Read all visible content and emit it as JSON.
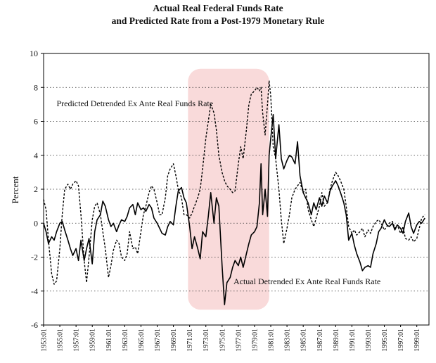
{
  "chart_data": {
    "type": "line",
    "title": "Actual Real Federal Funds Rate",
    "subtitle": "and Predicted Rate from a Post-1979 Monetary Rule",
    "xlabel": "",
    "ylabel": "Percent",
    "ylim": [
      -6,
      10
    ],
    "yticks": [
      -6,
      -4,
      -2,
      0,
      2,
      4,
      6,
      8,
      10
    ],
    "xlim": [
      1953.0,
      2000.5
    ],
    "xtick_labels": [
      "1953:01",
      "1955:01",
      "1957:01",
      "1959:01",
      "1961:01",
      "1963:01",
      "1965:01",
      "1967:01",
      "1969:01",
      "1971:01",
      "1973:01",
      "1975:01",
      "1977:01",
      "1979:01",
      "1981:01",
      "1983:01",
      "1985:01",
      "1987:01",
      "1989:01",
      "1991:01",
      "1993:01",
      "1995:01",
      "1997:01",
      "1999:01"
    ],
    "grid": "horizontal dotted",
    "highlight": {
      "x_start": 1970.8,
      "x_end": 1980.8,
      "y_bottom": -5.1,
      "y_top": 9.1,
      "color": "#f9dada"
    },
    "annotations": [
      {
        "text": "Predicted Detrended Ex Ante Real Funds Rate",
        "x": 1954.6,
        "y": 6.9
      },
      {
        "text": "Actual Detrended Ex Ante Real Funds Rate",
        "x": 1976.4,
        "y": -3.6
      }
    ],
    "series": [
      {
        "name": "Actual Detrended Ex Ante Real Funds Rate",
        "style": "solid",
        "points": [
          [
            1953.0,
            0.0
          ],
          [
            1953.3,
            -0.5
          ],
          [
            1953.6,
            -1.2
          ],
          [
            1954.0,
            -0.8
          ],
          [
            1954.3,
            -1.0
          ],
          [
            1954.6,
            -0.5
          ],
          [
            1955.0,
            0.0
          ],
          [
            1955.3,
            0.1
          ],
          [
            1955.6,
            -0.4
          ],
          [
            1956.0,
            -1.0
          ],
          [
            1956.3,
            -1.5
          ],
          [
            1956.6,
            -1.9
          ],
          [
            1957.0,
            -1.5
          ],
          [
            1957.3,
            -2.2
          ],
          [
            1957.6,
            -1.0
          ],
          [
            1958.0,
            -2.2
          ],
          [
            1958.3,
            -1.5
          ],
          [
            1958.6,
            -0.9
          ],
          [
            1959.0,
            -2.4
          ],
          [
            1959.3,
            -0.5
          ],
          [
            1959.6,
            0.2
          ],
          [
            1960.0,
            0.5
          ],
          [
            1960.3,
            1.3
          ],
          [
            1960.6,
            1.0
          ],
          [
            1961.0,
            0.2
          ],
          [
            1961.3,
            -0.2
          ],
          [
            1961.6,
            0.0
          ],
          [
            1962.0,
            -0.5
          ],
          [
            1962.3,
            -0.1
          ],
          [
            1962.6,
            0.2
          ],
          [
            1963.0,
            0.1
          ],
          [
            1963.3,
            0.4
          ],
          [
            1963.6,
            0.9
          ],
          [
            1964.0,
            1.1
          ],
          [
            1964.3,
            0.5
          ],
          [
            1964.6,
            1.2
          ],
          [
            1965.0,
            0.8
          ],
          [
            1965.3,
            0.9
          ],
          [
            1965.6,
            0.7
          ],
          [
            1966.0,
            1.1
          ],
          [
            1966.3,
            0.9
          ],
          [
            1966.6,
            0.3
          ],
          [
            1967.0,
            0.0
          ],
          [
            1967.3,
            -0.3
          ],
          [
            1967.6,
            -0.6
          ],
          [
            1968.0,
            -0.7
          ],
          [
            1968.3,
            -0.2
          ],
          [
            1968.6,
            0.1
          ],
          [
            1969.0,
            -0.1
          ],
          [
            1969.3,
            1.0
          ],
          [
            1969.6,
            1.9
          ],
          [
            1970.0,
            2.1
          ],
          [
            1970.3,
            1.5
          ],
          [
            1970.6,
            1.2
          ],
          [
            1971.0,
            -0.2
          ],
          [
            1971.3,
            -1.5
          ],
          [
            1971.6,
            -0.8
          ],
          [
            1972.0,
            -1.5
          ],
          [
            1972.3,
            -2.1
          ],
          [
            1972.6,
            -0.5
          ],
          [
            1973.0,
            -0.8
          ],
          [
            1973.3,
            0.4
          ],
          [
            1973.6,
            1.8
          ],
          [
            1974.0,
            0.0
          ],
          [
            1974.3,
            1.5
          ],
          [
            1974.6,
            1.0
          ],
          [
            1975.0,
            -2.5
          ],
          [
            1975.3,
            -4.8
          ],
          [
            1975.6,
            -3.5
          ],
          [
            1976.0,
            -3.2
          ],
          [
            1976.3,
            -2.6
          ],
          [
            1976.6,
            -2.2
          ],
          [
            1977.0,
            -2.5
          ],
          [
            1977.3,
            -2.0
          ],
          [
            1977.6,
            -2.6
          ],
          [
            1978.0,
            -1.8
          ],
          [
            1978.3,
            -1.2
          ],
          [
            1978.6,
            -0.7
          ],
          [
            1979.0,
            -0.5
          ],
          [
            1979.3,
            -0.2
          ],
          [
            1979.6,
            1.2
          ],
          [
            1979.8,
            3.5
          ],
          [
            1980.0,
            0.5
          ],
          [
            1980.3,
            2.0
          ],
          [
            1980.6,
            0.4
          ],
          [
            1980.8,
            4.0
          ],
          [
            1981.0,
            5.0
          ],
          [
            1981.3,
            6.4
          ],
          [
            1981.6,
            3.8
          ],
          [
            1982.0,
            5.8
          ],
          [
            1982.3,
            3.8
          ],
          [
            1982.6,
            3.2
          ],
          [
            1983.0,
            3.7
          ],
          [
            1983.3,
            4.0
          ],
          [
            1983.6,
            3.9
          ],
          [
            1984.0,
            3.5
          ],
          [
            1984.3,
            4.8
          ],
          [
            1984.6,
            2.8
          ],
          [
            1985.0,
            1.8
          ],
          [
            1985.3,
            1.5
          ],
          [
            1985.6,
            1.2
          ],
          [
            1986.0,
            0.5
          ],
          [
            1986.3,
            1.2
          ],
          [
            1986.6,
            0.8
          ],
          [
            1987.0,
            1.5
          ],
          [
            1987.3,
            1.0
          ],
          [
            1987.6,
            1.6
          ],
          [
            1988.0,
            1.2
          ],
          [
            1988.3,
            1.9
          ],
          [
            1988.6,
            2.2
          ],
          [
            1989.0,
            2.5
          ],
          [
            1989.3,
            2.2
          ],
          [
            1989.6,
            1.8
          ],
          [
            1990.0,
            1.2
          ],
          [
            1990.3,
            0.5
          ],
          [
            1990.6,
            -1.0
          ],
          [
            1991.0,
            -0.6
          ],
          [
            1991.3,
            -1.3
          ],
          [
            1991.6,
            -1.8
          ],
          [
            1992.0,
            -2.3
          ],
          [
            1992.3,
            -2.8
          ],
          [
            1992.6,
            -2.6
          ],
          [
            1993.0,
            -2.5
          ],
          [
            1993.3,
            -2.6
          ],
          [
            1993.6,
            -1.8
          ],
          [
            1994.0,
            -1.2
          ],
          [
            1994.3,
            -0.5
          ],
          [
            1994.6,
            -0.3
          ],
          [
            1995.0,
            0.2
          ],
          [
            1995.3,
            -0.1
          ],
          [
            1995.6,
            -0.2
          ],
          [
            1996.0,
            0.0
          ],
          [
            1996.3,
            -0.4
          ],
          [
            1996.6,
            -0.1
          ],
          [
            1997.0,
            -0.3
          ],
          [
            1997.3,
            -0.6
          ],
          [
            1997.6,
            0.1
          ],
          [
            1998.0,
            0.6
          ],
          [
            1998.3,
            -0.2
          ],
          [
            1998.6,
            -0.6
          ],
          [
            1999.0,
            -0.1
          ],
          [
            1999.3,
            0.1
          ],
          [
            1999.6,
            0.0
          ],
          [
            2000.0,
            0.3
          ]
        ]
      },
      {
        "name": "Predicted Detrended Ex Ante Real Funds Rate",
        "style": "dashed",
        "points": [
          [
            1953.0,
            1.4
          ],
          [
            1953.3,
            0.8
          ],
          [
            1953.6,
            -1.0
          ],
          [
            1954.0,
            -3.0
          ],
          [
            1954.3,
            -3.6
          ],
          [
            1954.6,
            -3.4
          ],
          [
            1955.0,
            -1.5
          ],
          [
            1955.3,
            0.5
          ],
          [
            1955.6,
            2.0
          ],
          [
            1956.0,
            2.3
          ],
          [
            1956.3,
            2.0
          ],
          [
            1956.6,
            2.3
          ],
          [
            1957.0,
            2.5
          ],
          [
            1957.3,
            2.2
          ],
          [
            1957.6,
            0.5
          ],
          [
            1958.0,
            -2.2
          ],
          [
            1958.3,
            -3.5
          ],
          [
            1958.6,
            -2.0
          ],
          [
            1959.0,
            0.2
          ],
          [
            1959.3,
            1.0
          ],
          [
            1959.6,
            1.2
          ],
          [
            1960.0,
            0.5
          ],
          [
            1960.3,
            -0.5
          ],
          [
            1960.6,
            -1.5
          ],
          [
            1961.0,
            -3.2
          ],
          [
            1961.3,
            -2.5
          ],
          [
            1961.6,
            -1.6
          ],
          [
            1962.0,
            -1.0
          ],
          [
            1962.3,
            -1.2
          ],
          [
            1962.6,
            -2.0
          ],
          [
            1963.0,
            -2.2
          ],
          [
            1963.3,
            -1.8
          ],
          [
            1963.6,
            -0.5
          ],
          [
            1964.0,
            -1.5
          ],
          [
            1964.3,
            -1.4
          ],
          [
            1964.6,
            -1.8
          ],
          [
            1965.0,
            -0.5
          ],
          [
            1965.3,
            0.5
          ],
          [
            1965.6,
            1.0
          ],
          [
            1966.0,
            1.8
          ],
          [
            1966.3,
            2.2
          ],
          [
            1966.6,
            2.0
          ],
          [
            1967.0,
            1.2
          ],
          [
            1967.3,
            0.5
          ],
          [
            1967.6,
            0.5
          ],
          [
            1968.0,
            1.5
          ],
          [
            1968.3,
            2.8
          ],
          [
            1968.6,
            3.2
          ],
          [
            1969.0,
            3.5
          ],
          [
            1969.3,
            2.8
          ],
          [
            1969.6,
            2.0
          ],
          [
            1970.0,
            1.5
          ],
          [
            1970.3,
            0.5
          ],
          [
            1970.6,
            0.5
          ],
          [
            1971.0,
            0.3
          ],
          [
            1971.3,
            0.6
          ],
          [
            1971.6,
            1.0
          ],
          [
            1972.0,
            1.5
          ],
          [
            1972.3,
            2.0
          ],
          [
            1972.6,
            3.2
          ],
          [
            1973.0,
            5.0
          ],
          [
            1973.3,
            6.0
          ],
          [
            1973.6,
            7.0
          ],
          [
            1974.0,
            6.5
          ],
          [
            1974.3,
            5.5
          ],
          [
            1974.6,
            4.0
          ],
          [
            1975.0,
            3.0
          ],
          [
            1975.3,
            2.5
          ],
          [
            1975.6,
            2.2
          ],
          [
            1976.0,
            2.0
          ],
          [
            1976.3,
            1.8
          ],
          [
            1976.6,
            1.9
          ],
          [
            1977.0,
            3.5
          ],
          [
            1977.3,
            4.5
          ],
          [
            1977.6,
            3.8
          ],
          [
            1978.0,
            5.5
          ],
          [
            1978.3,
            7.0
          ],
          [
            1978.6,
            7.6
          ],
          [
            1979.0,
            7.8
          ],
          [
            1979.3,
            8.0
          ],
          [
            1979.6,
            7.8
          ],
          [
            1979.8,
            8.0
          ],
          [
            1980.0,
            6.5
          ],
          [
            1980.3,
            5.2
          ],
          [
            1980.6,
            7.0
          ],
          [
            1980.8,
            8.4
          ],
          [
            1981.0,
            7.5
          ],
          [
            1981.3,
            4.5
          ],
          [
            1981.6,
            3.8
          ],
          [
            1982.0,
            2.0
          ],
          [
            1982.3,
            0.2
          ],
          [
            1982.6,
            -1.2
          ],
          [
            1983.0,
            -0.3
          ],
          [
            1983.3,
            0.5
          ],
          [
            1983.6,
            1.5
          ],
          [
            1984.0,
            2.0
          ],
          [
            1984.3,
            2.2
          ],
          [
            1984.6,
            2.4
          ],
          [
            1985.0,
            1.8
          ],
          [
            1985.3,
            2.0
          ],
          [
            1985.6,
            0.8
          ],
          [
            1986.0,
            0.2
          ],
          [
            1986.3,
            -0.2
          ],
          [
            1986.6,
            0.3
          ],
          [
            1987.0,
            1.0
          ],
          [
            1987.3,
            1.8
          ],
          [
            1987.6,
            1.0
          ],
          [
            1988.0,
            1.2
          ],
          [
            1988.3,
            2.0
          ],
          [
            1988.6,
            2.5
          ],
          [
            1989.0,
            3.0
          ],
          [
            1989.3,
            2.8
          ],
          [
            1989.6,
            2.5
          ],
          [
            1990.0,
            2.0
          ],
          [
            1990.3,
            1.0
          ],
          [
            1990.6,
            -0.2
          ],
          [
            1991.0,
            -0.6
          ],
          [
            1991.3,
            -0.4
          ],
          [
            1991.6,
            -0.7
          ],
          [
            1992.0,
            -0.5
          ],
          [
            1992.3,
            -0.3
          ],
          [
            1992.6,
            -0.8
          ],
          [
            1993.0,
            -0.4
          ],
          [
            1993.3,
            -0.6
          ],
          [
            1993.6,
            -0.2
          ],
          [
            1994.0,
            0.1
          ],
          [
            1994.3,
            0.2
          ],
          [
            1994.6,
            0.0
          ],
          [
            1995.0,
            -0.4
          ],
          [
            1995.3,
            -0.2
          ],
          [
            1995.6,
            0.0
          ],
          [
            1996.0,
            0.1
          ],
          [
            1996.3,
            -0.3
          ],
          [
            1996.6,
            -0.1
          ],
          [
            1997.0,
            -0.6
          ],
          [
            1997.3,
            -0.2
          ],
          [
            1997.6,
            -0.9
          ],
          [
            1998.0,
            -1.0
          ],
          [
            1998.3,
            -0.8
          ],
          [
            1998.6,
            -1.1
          ],
          [
            1999.0,
            -0.9
          ],
          [
            1999.3,
            -0.3
          ],
          [
            1999.6,
            0.3
          ],
          [
            2000.0,
            0.5
          ]
        ]
      }
    ]
  }
}
